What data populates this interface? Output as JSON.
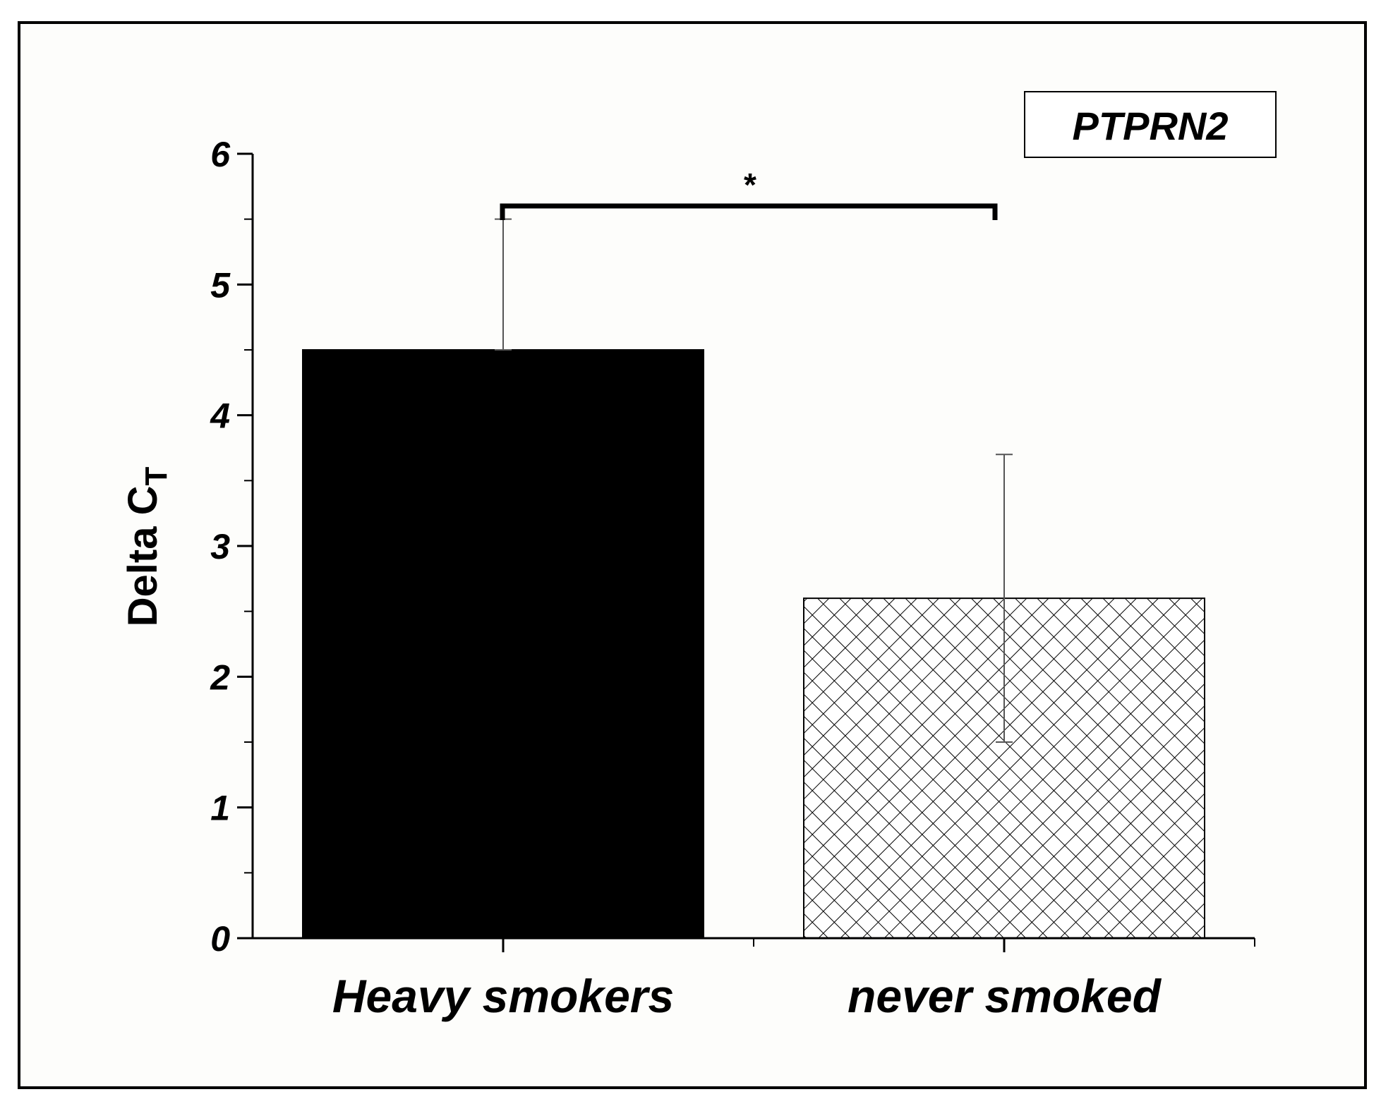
{
  "chart_data": {
    "type": "bar",
    "categories": [
      "Heavy smokers",
      "never smoked"
    ],
    "values": [
      4.5,
      2.6
    ],
    "error_low": [
      4.5,
      1.5
    ],
    "error_high": [
      5.5,
      3.7
    ],
    "fills": [
      "solid-black",
      "crosshatch"
    ],
    "ylabel_main": "Delta C",
    "ylabel_sub": "T",
    "legend_label": "PTPRN2",
    "significance": "*",
    "ylim": [
      0,
      6
    ],
    "yticks": [
      "0",
      "1",
      "2",
      "3",
      "4",
      "5",
      "6"
    ],
    "grid": false,
    "colors": {
      "bar1": "#000000",
      "hatch": "#000000",
      "background": "#fdfdfb"
    }
  }
}
